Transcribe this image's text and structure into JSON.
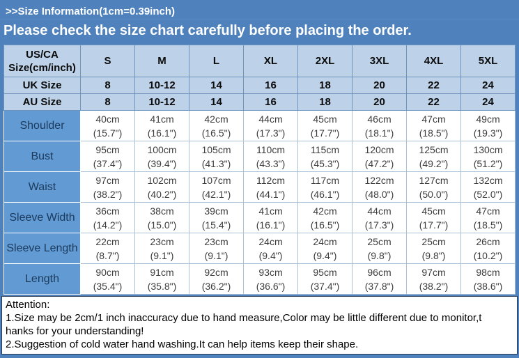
{
  "colors": {
    "page_background_blue": "#4f81bd",
    "header_cell_blue": "#bdd2e9",
    "measure_label_blue": "#629ad3",
    "grid_line_blue": "#6e93bd",
    "body_grid_line": "#a9c0d7"
  },
  "header": {
    "title": ">>Size Information(1cm=0.39inch)",
    "notice": "Please check the size chart carefully before placing the order."
  },
  "size_table": {
    "corner_header_line1": "US/CA",
    "corner_header_line2": "Size(cm/inch)",
    "sizes": [
      "S",
      "M",
      "L",
      "XL",
      "2XL",
      "3XL",
      "4XL",
      "5XL"
    ],
    "region_rows": [
      {
        "label": "UK Size",
        "values": [
          "8",
          "10-12",
          "14",
          "16",
          "18",
          "20",
          "22",
          "24"
        ]
      },
      {
        "label": "AU Size",
        "values": [
          "8",
          "10-12",
          "14",
          "16",
          "18",
          "20",
          "22",
          "24"
        ]
      }
    ],
    "measure_rows": [
      {
        "label": "Shoulder",
        "cm": [
          "40cm",
          "41cm",
          "42cm",
          "44cm",
          "45cm",
          "46cm",
          "47cm",
          "49cm"
        ],
        "inch": [
          "(15.7\")",
          "(16.1\")",
          "(16.5\")",
          "(17.3\")",
          "(17.7\")",
          "(18.1\")",
          "(18.5\")",
          "(19.3\")"
        ]
      },
      {
        "label": "Bust",
        "cm": [
          "95cm",
          "100cm",
          "105cm",
          "110cm",
          "115cm",
          "120cm",
          "125cm",
          "130cm"
        ],
        "inch": [
          "(37.4\")",
          "(39.4\")",
          "(41.3\")",
          "(43.3\")",
          "(45.3\")",
          "(47.2\")",
          "(49.2\")",
          "(51.2\")"
        ]
      },
      {
        "label": "Waist",
        "cm": [
          "97cm",
          "102cm",
          "107cm",
          "112cm",
          "117cm",
          "122cm",
          "127cm",
          "132cm"
        ],
        "inch": [
          "(38.2\")",
          "(40.2\")",
          "(42.1\")",
          "(44.1\")",
          "(46.1\")",
          "(48.0\")",
          "(50.0\")",
          "(52.0\")"
        ]
      },
      {
        "label": "Sleeve Width",
        "cm": [
          "36cm",
          "38cm",
          "39cm",
          "41cm",
          "42cm",
          "44cm",
          "45cm",
          "47cm"
        ],
        "inch": [
          "(14.2\")",
          "(15.0\")",
          "(15.4\")",
          "(16.1\")",
          "(16.5\")",
          "(17.3\")",
          "(17.7\")",
          "(18.5\")"
        ]
      },
      {
        "label": "Sleeve Length",
        "cm": [
          "22cm",
          "23cm",
          "23cm",
          "24cm",
          "24cm",
          "25cm",
          "25cm",
          "26cm"
        ],
        "inch": [
          "(8.7\")",
          "(9.1\")",
          "(9.1\")",
          "(9.4\")",
          "(9.4\")",
          "(9.8\")",
          "(9.8\")",
          "(10.2\")"
        ]
      },
      {
        "label": "Length",
        "cm": [
          "90cm",
          "91cm",
          "92cm",
          "93cm",
          "95cm",
          "96cm",
          "97cm",
          "98cm"
        ],
        "inch": [
          "(35.4\")",
          "(35.8\")",
          "(36.2\")",
          "(36.6\")",
          "(37.4\")",
          "(37.8\")",
          "(38.2\")",
          "(38.6\")"
        ]
      }
    ]
  },
  "attention": {
    "title": "Attention:",
    "lines": [
      "1.Size may be 2cm/1 inch inaccuracy due to hand measure,Color may be little different due to monitor,t",
      "hanks for your understanding!",
      "2.Suggestion of cold water hand washing.It can help items keep their shape."
    ]
  }
}
